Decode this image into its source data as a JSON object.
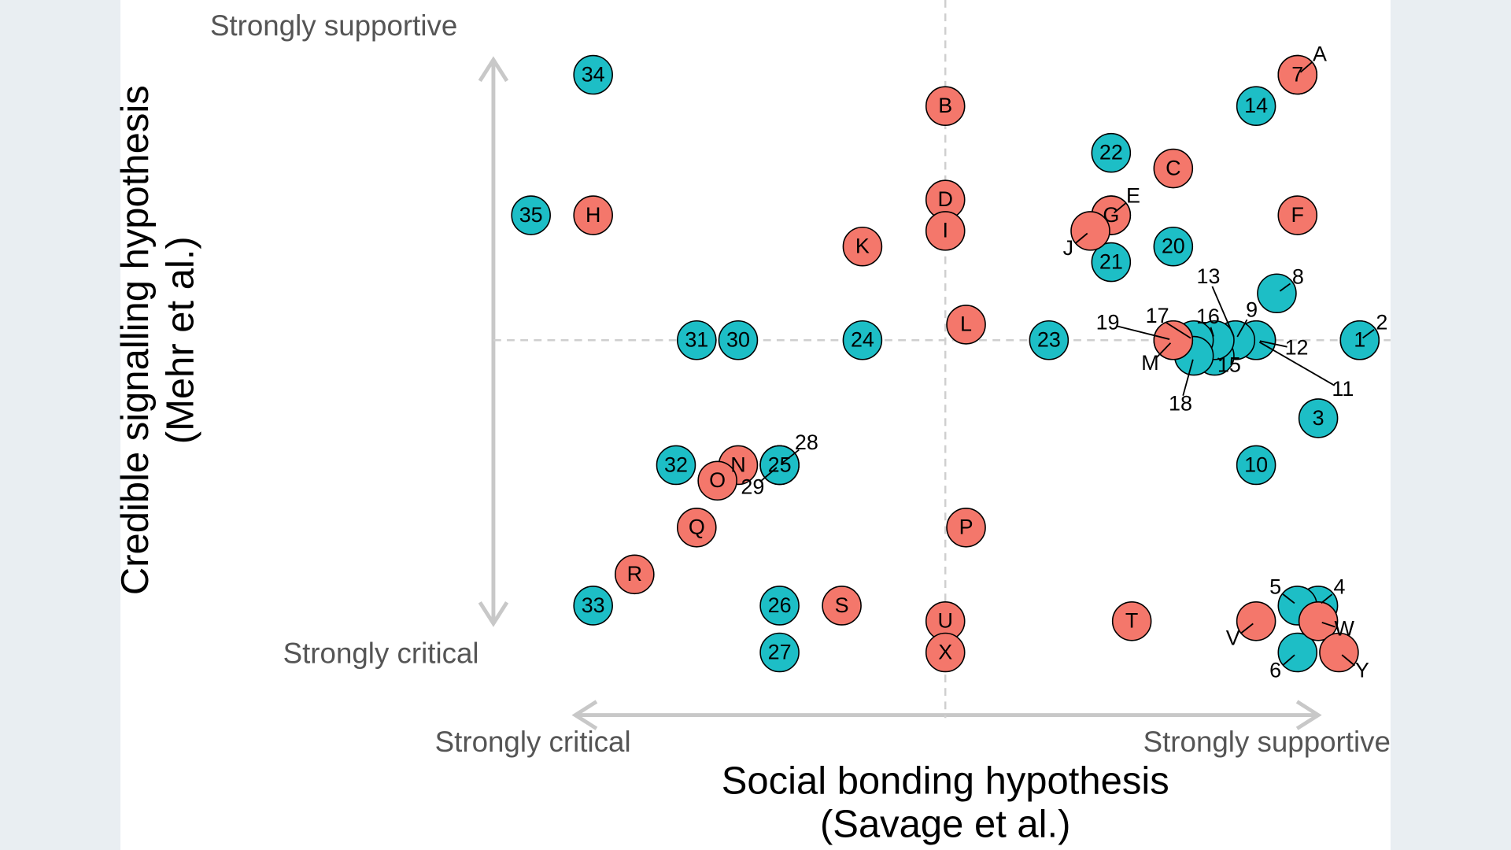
{
  "chart_data": {
    "type": "scatter",
    "xlabel": [
      "Social bonding hypothesis",
      "(Savage et al.)"
    ],
    "ylabel": [
      "Credible signalling hypothesis",
      "(Mehr et al.)"
    ],
    "x_low_label": "Strongly critical",
    "x_high_label": "Strongly supportive",
    "y_low_label": "Strongly critical",
    "y_high_label": "Strongly supportive",
    "xlim": [
      -24,
      24
    ],
    "ylim": [
      -20,
      20
    ],
    "series": [
      {
        "color": "#1dbec6",
        "labels": [
          "1",
          "2",
          "3",
          "4",
          "5",
          "6",
          "7",
          "8",
          "9",
          "10",
          "11",
          "12",
          "13",
          "14",
          "15",
          "16",
          "17",
          "18",
          "19",
          "20",
          "21",
          "22",
          "23",
          "24",
          "25",
          "26",
          "27",
          "28",
          "29",
          "30",
          "31",
          "32",
          "33",
          "34",
          "35"
        ],
        "x": [
          20,
          20,
          18,
          18,
          17,
          17,
          17,
          16,
          14,
          15,
          15,
          15,
          14,
          15,
          13,
          13,
          12,
          12,
          11,
          11,
          8,
          8,
          5,
          -4,
          -8,
          -8,
          -8,
          -8,
          -8,
          -10,
          -12,
          -13,
          -17,
          -17,
          -20
        ],
        "values": [
          0,
          0,
          -5,
          -17,
          -17,
          -20,
          17,
          3,
          0,
          -8,
          0,
          0,
          0,
          15,
          -1,
          0,
          0,
          -1,
          0,
          6,
          5,
          12,
          0,
          0,
          -8,
          -17,
          -20,
          -8,
          -8,
          0,
          0,
          -8,
          -17,
          17,
          8
        ]
      },
      {
        "color": "#f4776b",
        "labels": [
          "A",
          "B",
          "C",
          "D",
          "E",
          "F",
          "G",
          "H",
          "I",
          "J",
          "K",
          "L",
          "M",
          "N",
          "O",
          "P",
          "Q",
          "R",
          "S",
          "T",
          "U",
          "V",
          "W",
          "X",
          "Y"
        ],
        "x": [
          17,
          0,
          11,
          0,
          8,
          17,
          8,
          -17,
          0,
          7,
          -4,
          1,
          11,
          -10,
          -11,
          1,
          -12,
          -15,
          -5,
          9,
          0,
          15,
          18,
          0,
          19
        ],
        "values": [
          17,
          15,
          11,
          9,
          8,
          8,
          8,
          8,
          7,
          7,
          6,
          1,
          0,
          -8,
          -9,
          -12,
          -12,
          -15,
          -17,
          -18,
          -18,
          -18,
          -18,
          -20,
          -20
        ]
      }
    ]
  }
}
